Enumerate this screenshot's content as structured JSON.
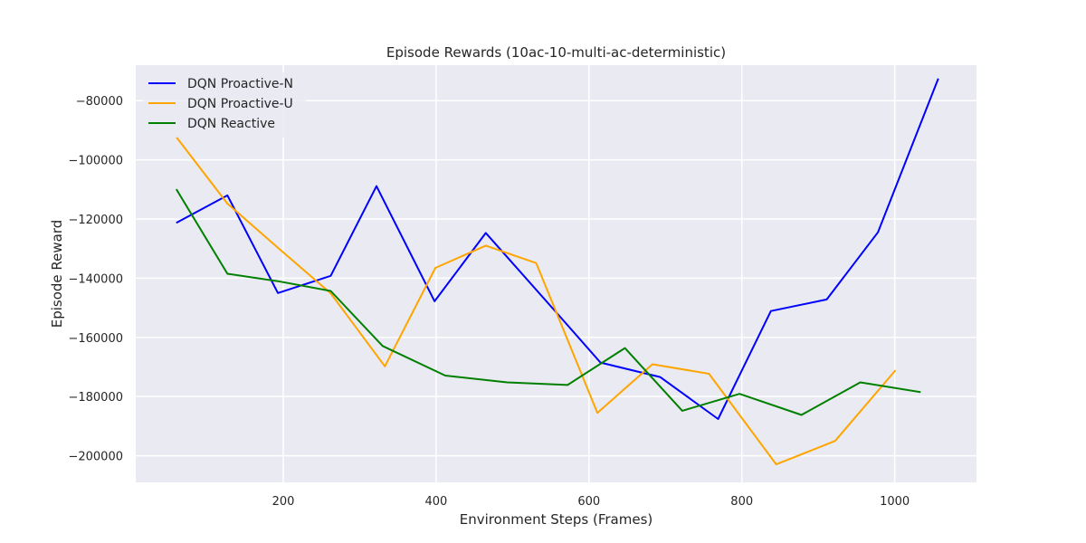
{
  "chart_data": {
    "type": "line",
    "title": "Episode Rewards (10ac-10-multi-ac-deterministic)",
    "xlabel": "Environment Steps (Frames)",
    "ylabel": "Episode Reward",
    "xlim": [
      7,
      1107
    ],
    "ylim": [
      -209000,
      -68000
    ],
    "xticks": [
      200,
      400,
      600,
      800,
      1000
    ],
    "yticks": [
      -200000,
      -180000,
      -160000,
      -140000,
      -120000,
      -100000,
      -80000
    ],
    "xtick_labels": [
      "200",
      "400",
      "600",
      "800",
      "1000"
    ],
    "ytick_labels": [
      "−200000",
      "−180000",
      "−160000",
      "−140000",
      "−120000",
      "−100000",
      "−80000"
    ],
    "grid": true,
    "background": "#eaeaf2",
    "legend_position": "top-left",
    "series": [
      {
        "name": "DQN Proactive-N",
        "color": "#0000ff",
        "points": [
          [
            60,
            -121300
          ],
          [
            127,
            -112000
          ],
          [
            193,
            -145000
          ],
          [
            262,
            -139200
          ],
          [
            322,
            -108900
          ],
          [
            398,
            -147800
          ],
          [
            465,
            -124700
          ],
          [
            557,
            -151500
          ],
          [
            615,
            -168500
          ],
          [
            693,
            -173400
          ],
          [
            769,
            -187600
          ],
          [
            838,
            -151100
          ],
          [
            911,
            -147200
          ],
          [
            978,
            -124500
          ],
          [
            1057,
            -72500
          ]
        ]
      },
      {
        "name": "DQN Proactive-U",
        "color": "#ffa500",
        "points": [
          [
            60,
            -92300
          ],
          [
            127,
            -114800
          ],
          [
            193,
            -129700
          ],
          [
            262,
            -145100
          ],
          [
            333,
            -169800
          ],
          [
            399,
            -136500
          ],
          [
            465,
            -129000
          ],
          [
            531,
            -134900
          ],
          [
            611,
            -185500
          ],
          [
            683,
            -169100
          ],
          [
            757,
            -172300
          ],
          [
            845,
            -202900
          ],
          [
            922,
            -195000
          ],
          [
            1001,
            -171100
          ]
        ]
      },
      {
        "name": "DQN Reactive",
        "color": "#008000",
        "points": [
          [
            60,
            -109900
          ],
          [
            127,
            -138500
          ],
          [
            193,
            -141000
          ],
          [
            262,
            -144300
          ],
          [
            330,
            -162900
          ],
          [
            412,
            -172900
          ],
          [
            493,
            -175200
          ],
          [
            572,
            -176100
          ],
          [
            647,
            -163600
          ],
          [
            722,
            -184800
          ],
          [
            797,
            -179100
          ],
          [
            878,
            -186200
          ],
          [
            955,
            -175200
          ],
          [
            1034,
            -178500
          ]
        ]
      }
    ]
  }
}
